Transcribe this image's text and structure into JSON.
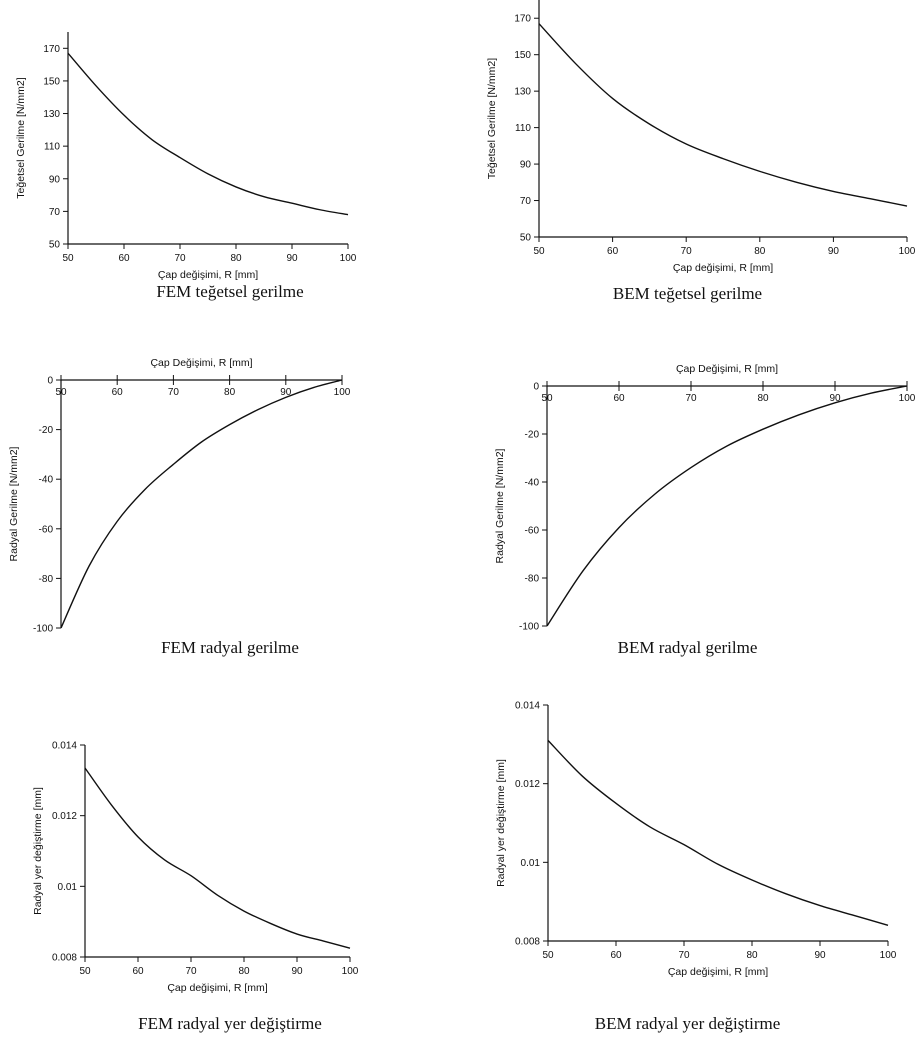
{
  "chart_data": [
    {
      "type": "line",
      "caption": "FEM teğetsel gerilme",
      "xlabel": "Çap değişimi, R [mm]",
      "ylabel": "Teğetsel Gerilme [N/mm2]",
      "xlim": [
        50,
        100
      ],
      "ylim": [
        50,
        180
      ],
      "xticks": [
        50,
        60,
        70,
        80,
        90,
        100
      ],
      "xtick_labels": [
        "50",
        "60",
        "70",
        "80",
        "90",
        "100"
      ],
      "yticks": [
        50,
        70,
        90,
        110,
        130,
        150,
        170
      ],
      "ytick_labels": [
        "50",
        "70",
        "90",
        "110",
        "130",
        "150",
        "170"
      ],
      "x_axis_position": "bottom",
      "series": [
        {
          "x": [
            50,
            55,
            60,
            65,
            70,
            75,
            80,
            85,
            90,
            95,
            100
          ],
          "y": [
            167,
            147,
            129,
            114,
            103,
            93,
            85,
            79,
            75,
            71,
            68
          ]
        }
      ]
    },
    {
      "type": "line",
      "caption": "BEM teğetsel gerilme",
      "xlabel": "Çap değişimi, R [mm]",
      "ylabel": "Teğetsel Gerilme [N/mm2]",
      "xlim": [
        50,
        100
      ],
      "ylim": [
        50,
        180
      ],
      "xticks": [
        50,
        60,
        70,
        80,
        90,
        100
      ],
      "xtick_labels": [
        "50",
        "60",
        "70",
        "80",
        "90",
        "100"
      ],
      "yticks": [
        50,
        70,
        90,
        110,
        130,
        150,
        170
      ],
      "ytick_labels": [
        "50",
        "70",
        "90",
        "110",
        "130",
        "150",
        "170"
      ],
      "x_axis_position": "bottom",
      "series": [
        {
          "x": [
            50,
            55,
            60,
            65,
            70,
            75,
            80,
            85,
            90,
            95,
            100
          ],
          "y": [
            167,
            145,
            126,
            112,
            101,
            93,
            86,
            80,
            75,
            71,
            67
          ]
        }
      ]
    },
    {
      "type": "line",
      "caption": "FEM radyal gerilme",
      "xlabel": "Çap Değişimi, R [mm]",
      "ylabel": "Radyal Gerilme [N/mm2]",
      "xlim": [
        50,
        100
      ],
      "ylim": [
        -100,
        0
      ],
      "xticks": [
        50,
        60,
        70,
        80,
        90,
        100
      ],
      "xtick_labels": [
        "50",
        "60",
        "70",
        "80",
        "90",
        "100"
      ],
      "yticks": [
        -100,
        -80,
        -60,
        -40,
        -20,
        0
      ],
      "ytick_labels": [
        "-100",
        "-80",
        "-60",
        "-40",
        "-20",
        "0"
      ],
      "x_axis_position": "top",
      "series": [
        {
          "x": [
            50,
            55,
            60,
            65,
            70,
            75,
            80,
            85,
            90,
            95,
            100
          ],
          "y": [
            -100,
            -75,
            -57,
            -44,
            -34,
            -25,
            -18,
            -12,
            -7,
            -3,
            0
          ]
        }
      ]
    },
    {
      "type": "line",
      "caption": "BEM radyal gerilme",
      "xlabel": "Çap Değişimi, R [mm]",
      "ylabel": "Radyal Gerilme [N/mm2]",
      "xlim": [
        50,
        100
      ],
      "ylim": [
        -100,
        0
      ],
      "xticks": [
        50,
        60,
        70,
        80,
        90,
        100
      ],
      "xtick_labels": [
        "50",
        "60",
        "70",
        "80",
        "90",
        "100"
      ],
      "yticks": [
        -100,
        -80,
        -60,
        -40,
        -20,
        0
      ],
      "ytick_labels": [
        "-100",
        "-80",
        "-60",
        "-40",
        "-20",
        "0"
      ],
      "x_axis_position": "top",
      "series": [
        {
          "x": [
            50,
            55,
            60,
            65,
            70,
            75,
            80,
            85,
            90,
            95,
            100
          ],
          "y": [
            -100,
            -77,
            -59,
            -45,
            -34,
            -25,
            -18,
            -12,
            -7,
            -3,
            0
          ]
        }
      ]
    },
    {
      "type": "line",
      "caption": "FEM radyal yer değiştirme",
      "xlabel": "Çap değişimi, R [mm]",
      "ylabel": "Radyal yer değiştirme [mm]",
      "xlim": [
        50,
        100
      ],
      "ylim": [
        0.008,
        0.014
      ],
      "xticks": [
        50,
        60,
        70,
        80,
        90,
        100
      ],
      "xtick_labels": [
        "50",
        "60",
        "70",
        "80",
        "90",
        "100"
      ],
      "yticks": [
        0.008,
        0.01,
        0.012,
        0.014
      ],
      "ytick_labels": [
        "0.008",
        "0.01",
        "0.012",
        "0.014"
      ],
      "x_axis_position": "bottom",
      "series": [
        {
          "x": [
            50,
            55,
            60,
            65,
            70,
            75,
            80,
            85,
            90,
            95,
            100
          ],
          "y": [
            0.01335,
            0.0123,
            0.0114,
            0.01075,
            0.0103,
            0.00975,
            0.0093,
            0.00895,
            0.00865,
            0.00845,
            0.00825
          ]
        }
      ]
    },
    {
      "type": "line",
      "caption": "BEM radyal yer değiştirme",
      "xlabel": "Çap değişimi, R [mm]",
      "ylabel": "Radyal yer değiştirme [mm]",
      "xlim": [
        50,
        100
      ],
      "ylim": [
        0.008,
        0.014
      ],
      "xticks": [
        50,
        60,
        70,
        80,
        90,
        100
      ],
      "xtick_labels": [
        "50",
        "60",
        "70",
        "80",
        "90",
        "100"
      ],
      "yticks": [
        0.008,
        0.01,
        0.012,
        0.014
      ],
      "ytick_labels": [
        "0.008",
        "0.01",
        "0.012",
        "0.014"
      ],
      "x_axis_position": "bottom",
      "series": [
        {
          "x": [
            50,
            55,
            60,
            65,
            70,
            75,
            80,
            85,
            90,
            95,
            100
          ],
          "y": [
            0.0131,
            0.0122,
            0.0115,
            0.0109,
            0.01045,
            0.00995,
            0.00955,
            0.0092,
            0.0089,
            0.00865,
            0.0084
          ]
        }
      ]
    }
  ]
}
